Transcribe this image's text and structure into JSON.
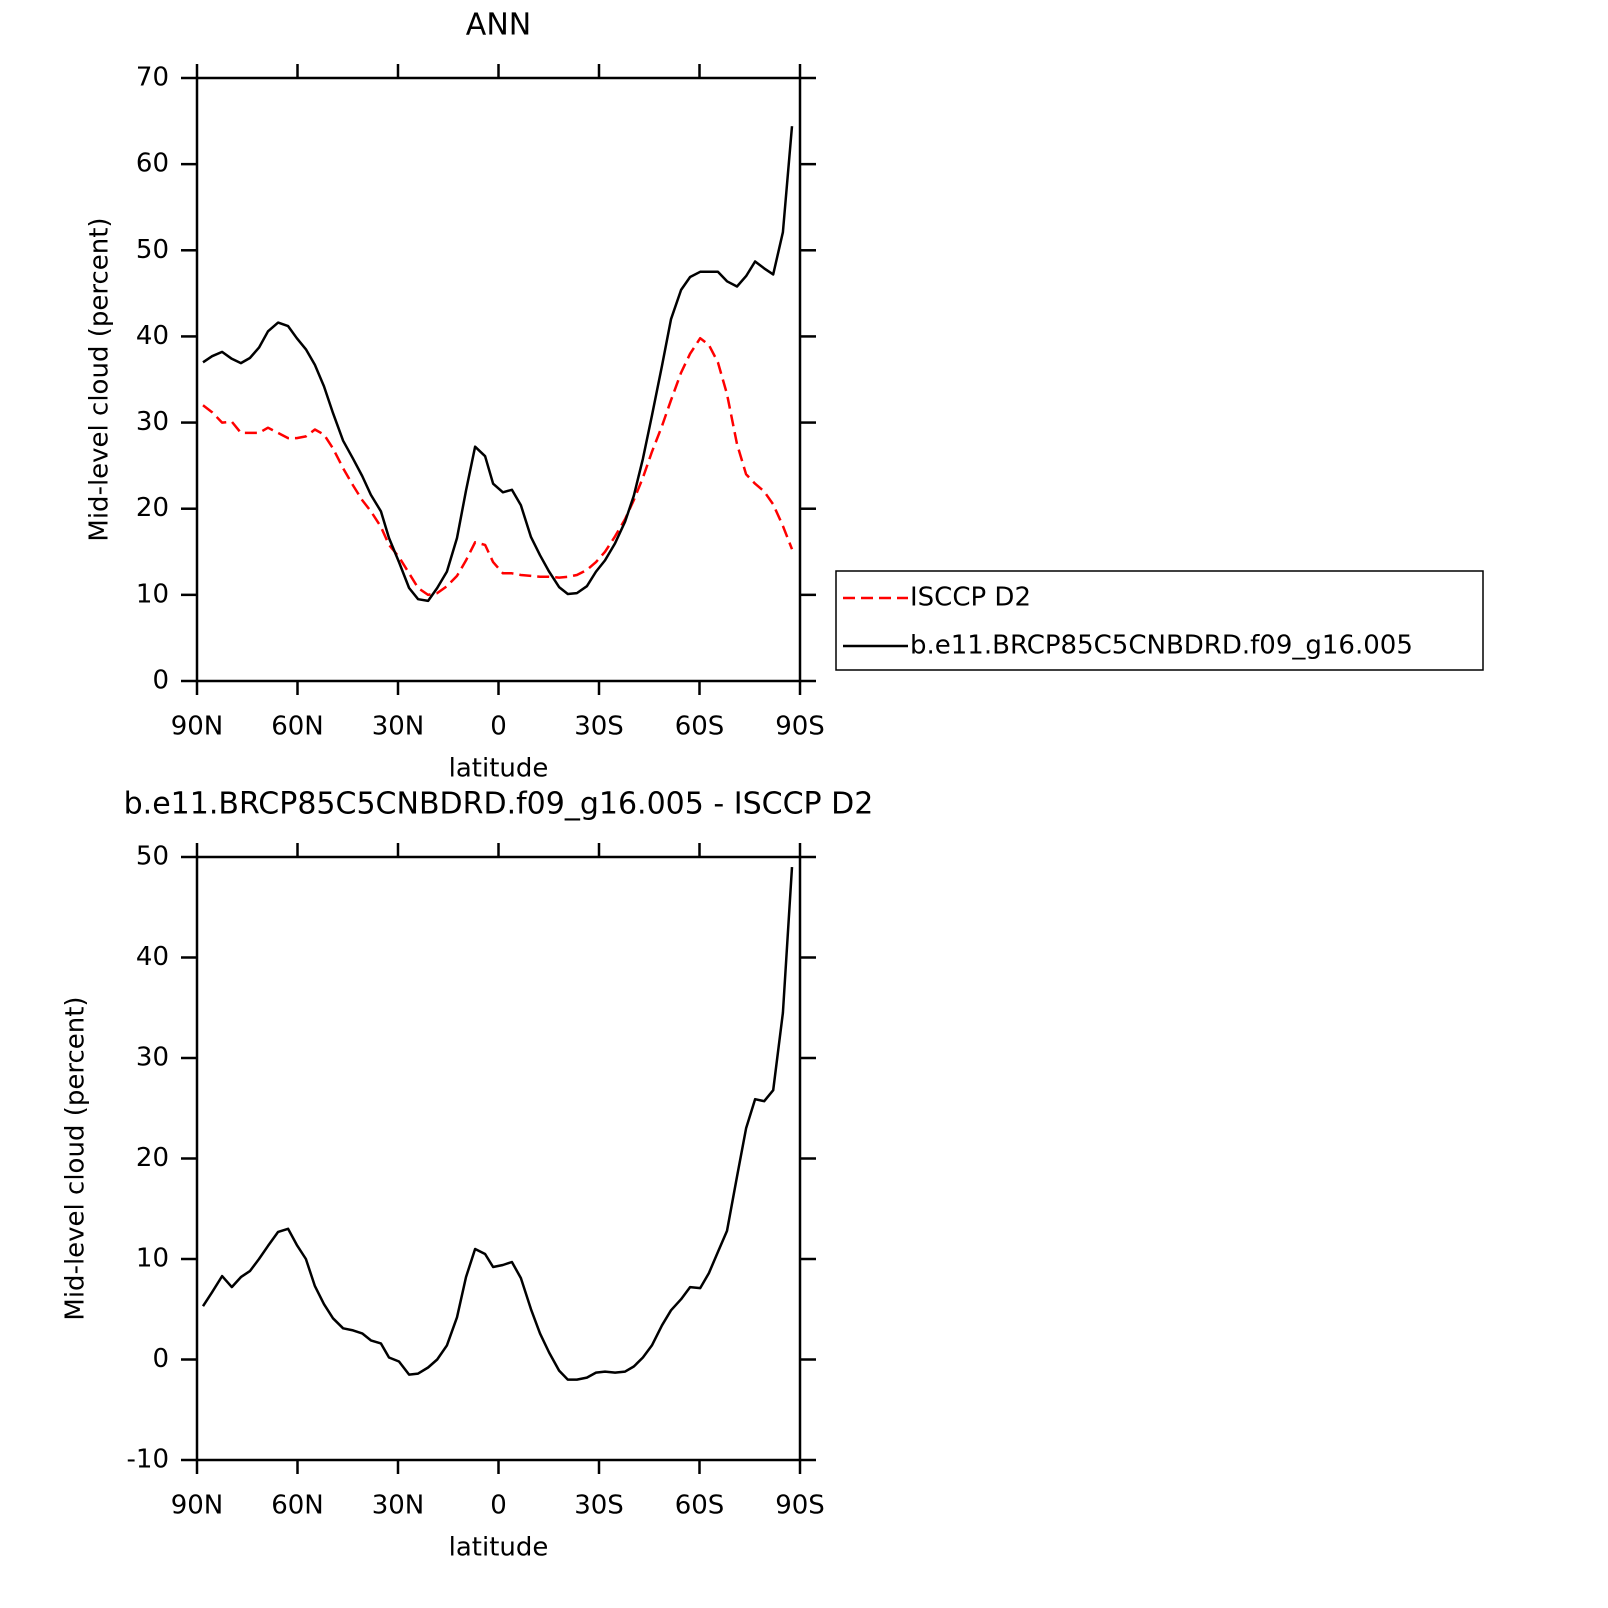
{
  "chart_data": [
    {
      "type": "line",
      "title": "ANN",
      "xlabel": "latitude",
      "ylabel": "Mid-level cloud (percent)",
      "x": [
        88.2,
        85.5,
        82.5,
        79.6,
        76.9,
        74.2,
        71.5,
        68.8,
        65.8,
        62.8,
        60.2,
        57.5,
        54.8,
        52.1,
        49.4,
        46.4,
        43.4,
        40.7,
        38.1,
        35.1,
        32.7,
        29.7,
        26.7,
        24.0,
        21.0,
        18.3,
        15.4,
        12.4,
        9.7,
        7.0,
        4.0,
        1.6,
        -1.3,
        -4.0,
        -6.7,
        -9.7,
        -12.4,
        -15.1,
        -18.1,
        -20.7,
        -23.4,
        -26.4,
        -29.1,
        -31.8,
        -34.8,
        -37.8,
        -40.4,
        -43.1,
        -45.8,
        -48.8,
        -51.5,
        -54.5,
        -57.2,
        -60.2,
        -62.8,
        -65.5,
        -68.2,
        -71.2,
        -73.9,
        -76.6,
        -79.3,
        -82.0,
        -84.9,
        -87.6
      ],
      "xlim": [
        90,
        -90
      ],
      "xticks": [
        {
          "value": 90,
          "label": "90N"
        },
        {
          "value": 60,
          "label": "60N"
        },
        {
          "value": 30,
          "label": "30N"
        },
        0,
        {
          "value": -30,
          "label": "30S"
        },
        {
          "value": -60,
          "label": "60S"
        },
        {
          "value": -90,
          "label": "90S"
        }
      ],
      "ylim": [
        0,
        70
      ],
      "yticks": [
        0,
        10,
        20,
        30,
        40,
        50,
        60,
        70
      ],
      "legend": "right",
      "series": [
        {
          "name": "ISCCP D2",
          "color": "#ff0000",
          "dashed": true,
          "values": [
            32.0,
            31.2,
            30.0,
            30.1,
            28.8,
            28.8,
            28.8,
            29.4,
            28.8,
            28.2,
            28.2,
            28.4,
            29.2,
            28.6,
            27.0,
            24.7,
            22.7,
            21.0,
            19.7,
            17.9,
            15.8,
            14.4,
            12.5,
            10.8,
            10.0,
            10.2,
            11.0,
            12.2,
            14.0,
            16.1,
            15.8,
            13.8,
            12.5,
            12.5,
            12.3,
            12.2,
            12.1,
            12.1,
            12.0,
            12.1,
            12.3,
            12.9,
            13.8,
            15.0,
            16.8,
            18.8,
            21.0,
            23.6,
            26.6,
            29.6,
            32.6,
            35.8,
            38.0,
            39.8,
            39.0,
            37.0,
            33.3,
            27.5,
            24.0,
            22.9,
            22.0,
            20.5,
            18.0,
            15.3
          ]
        },
        {
          "name": "b.e11.BRCP85C5CNBDRD.f09_g16.005",
          "color": "#000000",
          "dashed": false,
          "values": [
            37.0,
            37.7,
            38.2,
            37.4,
            36.9,
            37.5,
            38.7,
            40.6,
            41.6,
            41.2,
            39.8,
            38.5,
            36.7,
            34.2,
            31.1,
            27.9,
            25.8,
            23.8,
            21.6,
            19.7,
            16.6,
            13.8,
            10.8,
            9.5,
            9.3,
            10.8,
            12.7,
            16.6,
            22.1,
            27.2,
            26.1,
            22.9,
            21.9,
            22.2,
            20.4,
            16.7,
            14.6,
            12.7,
            10.9,
            10.1,
            10.2,
            11.0,
            12.7,
            14.0,
            16.0,
            18.5,
            21.5,
            25.8,
            30.8,
            36.6,
            42.0,
            45.4,
            46.9,
            47.5,
            47.5,
            47.5,
            46.4,
            45.8,
            47.0,
            48.7,
            47.9,
            47.2,
            52.1,
            64.4
          ]
        }
      ]
    },
    {
      "type": "line",
      "title": "b.e11.BRCP85C5CNBDRD.f09_g16.005 - ISCCP D2",
      "xlabel": "latitude",
      "ylabel": "Mid-level cloud (percent)",
      "x": [
        88.2,
        85.5,
        82.5,
        79.6,
        76.9,
        74.2,
        71.5,
        68.8,
        65.8,
        62.8,
        60.2,
        57.5,
        54.8,
        52.1,
        49.4,
        46.4,
        43.4,
        40.7,
        38.1,
        35.1,
        32.7,
        29.7,
        26.7,
        24.0,
        21.0,
        18.3,
        15.4,
        12.4,
        9.7,
        7.0,
        4.0,
        1.6,
        -1.3,
        -4.0,
        -6.7,
        -9.7,
        -12.4,
        -15.1,
        -18.1,
        -20.7,
        -23.4,
        -26.4,
        -29.1,
        -31.8,
        -34.8,
        -37.8,
        -40.4,
        -43.1,
        -45.8,
        -48.8,
        -51.5,
        -54.5,
        -57.2,
        -60.2,
        -62.8,
        -65.5,
        -68.2,
        -71.2,
        -73.9,
        -76.6,
        -79.3,
        -82.0,
        -84.9,
        -87.6
      ],
      "xlim": [
        90,
        -90
      ],
      "xticks": [
        {
          "value": 90,
          "label": "90N"
        },
        {
          "value": 60,
          "label": "60N"
        },
        {
          "value": 30,
          "label": "30N"
        },
        0,
        {
          "value": -30,
          "label": "30S"
        },
        {
          "value": -60,
          "label": "60S"
        },
        {
          "value": -90,
          "label": "90S"
        }
      ],
      "ylim": [
        -10,
        50
      ],
      "yticks": [
        -10,
        0,
        10,
        20,
        30,
        40,
        50
      ],
      "series": [
        {
          "color": "#000000",
          "dashed": false,
          "values": [
            5.3,
            6.7,
            8.3,
            7.2,
            8.2,
            8.8,
            10.0,
            11.3,
            12.7,
            13.0,
            11.4,
            10.0,
            7.3,
            5.5,
            4.1,
            3.1,
            2.9,
            2.6,
            1.9,
            1.6,
            0.2,
            -0.2,
            -1.5,
            -1.4,
            -0.8,
            0.0,
            1.4,
            4.2,
            8.2,
            11.0,
            10.5,
            9.2,
            9.4,
            9.7,
            8.1,
            5.0,
            2.6,
            0.7,
            -1.1,
            -2.0,
            -2.0,
            -1.8,
            -1.3,
            -1.2,
            -1.3,
            -1.2,
            -0.7,
            0.2,
            1.4,
            3.4,
            4.9,
            6.0,
            7.2,
            7.1,
            8.6,
            10.7,
            12.8,
            18.2,
            23.0,
            25.9,
            25.7,
            26.8,
            34.5,
            49.0
          ]
        }
      ]
    }
  ]
}
